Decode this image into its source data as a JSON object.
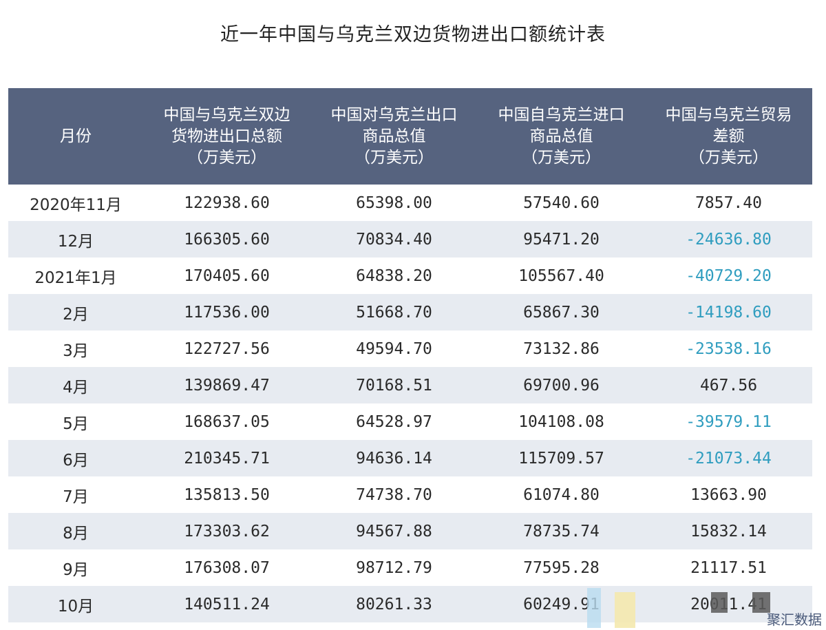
{
  "title": "近一年中国与乌克兰双边货物进出口额统计表",
  "headers": [
    "月份",
    "中国与乌克兰双边\n货物进出口总额\n（万美元）",
    "中国对乌克兰出口\n商品总值\n（万美元）",
    "中国自乌克兰进口\n商品总值\n（万美元）",
    "中国与乌克兰贸易\n差额\n（万美元）"
  ],
  "rows": [
    {
      "month": "2020年11月",
      "total": "122938.60",
      "export": "65398.00",
      "import": "57540.60",
      "balance": "7857.40"
    },
    {
      "month": "12月",
      "total": "166305.60",
      "export": "70834.40",
      "import": "95471.20",
      "balance": "-24636.80"
    },
    {
      "month": "2021年1月",
      "total": "170405.60",
      "export": "64838.20",
      "import": "105567.40",
      "balance": "-40729.20"
    },
    {
      "month": "2月",
      "total": "117536.00",
      "export": "51668.70",
      "import": "65867.30",
      "balance": "-14198.60"
    },
    {
      "month": "3月",
      "total": "122727.56",
      "export": "49594.70",
      "import": "73132.86",
      "balance": "-23538.16"
    },
    {
      "month": "4月",
      "total": "139869.47",
      "export": "70168.51",
      "import": "69700.96",
      "balance": "467.56"
    },
    {
      "month": "5月",
      "total": "168637.05",
      "export": "64528.97",
      "import": "104108.08",
      "balance": "-39579.11"
    },
    {
      "month": "6月",
      "total": "210345.71",
      "export": "94636.14",
      "import": "115709.57",
      "balance": "-21073.44"
    },
    {
      "month": "7月",
      "total": "135813.50",
      "export": "74738.70",
      "import": "61074.80",
      "balance": "13663.90"
    },
    {
      "month": "8月",
      "total": "173303.62",
      "export": "94567.88",
      "import": "78735.74",
      "balance": "15832.14"
    },
    {
      "month": "9月",
      "total": "176308.07",
      "export": "98712.79",
      "import": "77595.28",
      "balance": "21117.51"
    },
    {
      "month": "10月",
      "total": "140511.24",
      "export": "80261.33",
      "import": "60249.91",
      "balance": "20011.41"
    }
  ],
  "watermark": "聚汇数据",
  "colors": {
    "header_bg": "#56637f",
    "alt_row_bg": "#e7ebf1",
    "negative_text": "#2f9dbf"
  },
  "chart_data": {
    "type": "table",
    "title": "近一年中国与乌克兰双边货物进出口额统计表",
    "columns": [
      "月份",
      "中国与乌克兰双边货物进出口总额（万美元）",
      "中国对乌克兰出口商品总值（万美元）",
      "中国自乌克兰进口商品总值（万美元）",
      "中国与乌克兰贸易差额（万美元）"
    ],
    "rows": [
      [
        "2020年11月",
        122938.6,
        65398.0,
        57540.6,
        7857.4
      ],
      [
        "12月",
        166305.6,
        70834.4,
        95471.2,
        -24636.8
      ],
      [
        "2021年1月",
        170405.6,
        64838.2,
        105567.4,
        -40729.2
      ],
      [
        "2月",
        117536.0,
        51668.7,
        65867.3,
        -14198.6
      ],
      [
        "3月",
        122727.56,
        49594.7,
        73132.86,
        -23538.16
      ],
      [
        "4月",
        139869.47,
        70168.51,
        69700.96,
        467.56
      ],
      [
        "5月",
        168637.05,
        64528.97,
        104108.08,
        -39579.11
      ],
      [
        "6月",
        210345.71,
        94636.14,
        115709.57,
        -21073.44
      ],
      [
        "7月",
        135813.5,
        74738.7,
        61074.8,
        13663.9
      ],
      [
        "8月",
        173303.62,
        94567.88,
        78735.74,
        15832.14
      ],
      [
        "9月",
        176308.07,
        98712.79,
        77595.28,
        21117.51
      ],
      [
        "10月",
        140511.24,
        80261.33,
        60249.91,
        20011.41
      ]
    ]
  }
}
